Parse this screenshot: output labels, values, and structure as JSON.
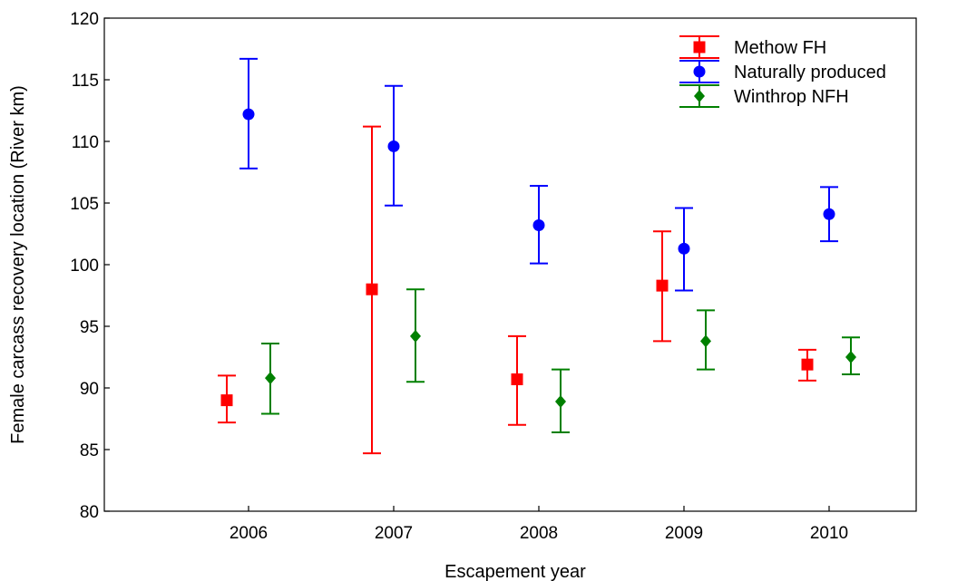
{
  "chart_data": {
    "type": "scatter",
    "subtype": "error-bar",
    "title": "",
    "xlabel": "Escapement year",
    "ylabel": "Female carcass recovery location (River km)",
    "categories": [
      "2006",
      "2007",
      "2008",
      "2009",
      "2010"
    ],
    "ylim": [
      80,
      120
    ],
    "yticks": [
      "80",
      "85",
      "90",
      "95",
      "100",
      "105",
      "110",
      "115",
      "120"
    ],
    "grid": false,
    "legend_position": "top-right",
    "series": [
      {
        "name": "Methow FH",
        "color": "#ff0000",
        "marker": "square",
        "values": [
          89.0,
          98.0,
          90.7,
          98.3,
          91.9
        ],
        "lower": [
          87.2,
          84.7,
          87.0,
          93.8,
          90.6
        ],
        "upper": [
          91.0,
          111.2,
          94.2,
          102.7,
          93.1
        ]
      },
      {
        "name": "Naturally produced",
        "color": "#0000ff",
        "marker": "circle",
        "values": [
          112.2,
          109.6,
          103.2,
          101.3,
          104.1
        ],
        "lower": [
          107.8,
          104.8,
          100.1,
          97.9,
          101.9
        ],
        "upper": [
          116.7,
          114.5,
          106.4,
          104.6,
          106.3
        ]
      },
      {
        "name": "Winthrop NFH",
        "color": "#008000",
        "marker": "diamond",
        "values": [
          90.8,
          94.2,
          88.9,
          93.8,
          92.5
        ],
        "lower": [
          87.9,
          90.5,
          86.4,
          91.5,
          91.1
        ],
        "upper": [
          93.6,
          98.0,
          91.5,
          96.3,
          94.1
        ]
      }
    ]
  }
}
